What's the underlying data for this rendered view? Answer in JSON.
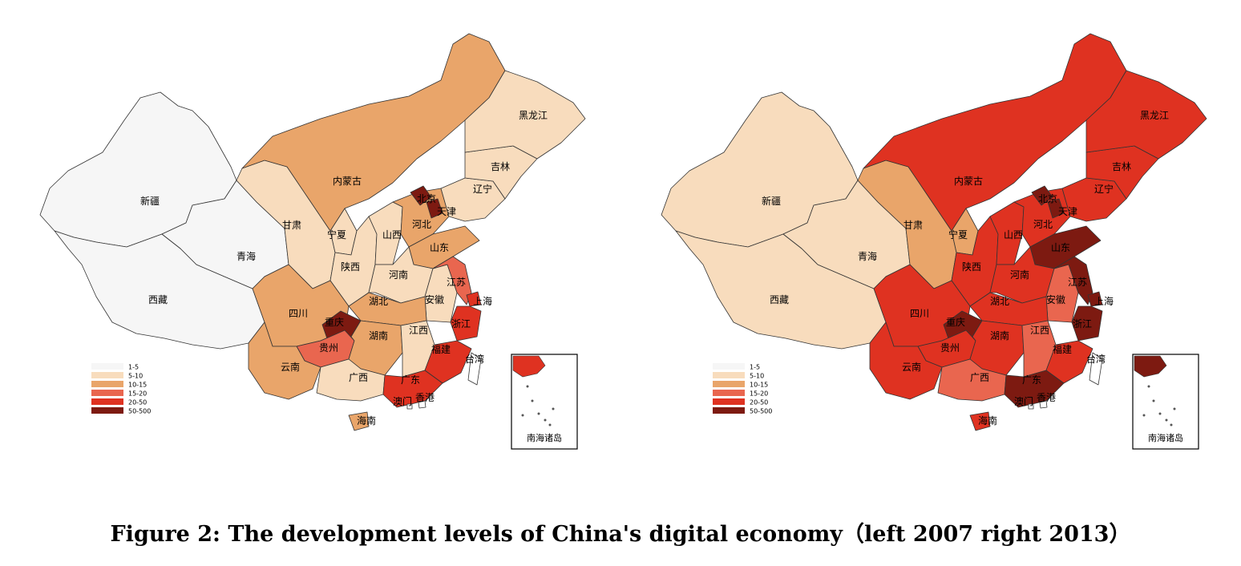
{
  "caption": "Figure 2: The development levels of China's digital economy（left 2007 right 2013）",
  "colors": {
    "c1": "#f6f6f6",
    "c2": "#f8dcbd",
    "c3": "#e9a56a",
    "c4": "#e9664f",
    "c5": "#df3221",
    "c6": "#7d1a11",
    "border": "#333333"
  },
  "legend_classes": [
    "1-5",
    "5-10",
    "10-15",
    "15-20",
    "20-50",
    "50-500"
  ],
  "maps": [
    {
      "year": "2007",
      "inset_label": "南海诸岛",
      "provinces": [
        {
          "name": "新疆",
          "class": 1
        },
        {
          "name": "西藏",
          "class": 1
        },
        {
          "name": "青海",
          "class": 1
        },
        {
          "name": "甘肃",
          "class": 2
        },
        {
          "name": "内蒙古",
          "class": 3
        },
        {
          "name": "宁夏",
          "class": 2
        },
        {
          "name": "陕西",
          "class": 2
        },
        {
          "name": "山西",
          "class": 2
        },
        {
          "name": "河北",
          "class": 3
        },
        {
          "name": "北京",
          "class": 6
        },
        {
          "name": "天津",
          "class": 6
        },
        {
          "name": "辽宁",
          "class": 2
        },
        {
          "name": "吉林",
          "class": 2
        },
        {
          "name": "黑龙江",
          "class": 2
        },
        {
          "name": "山东",
          "class": 3
        },
        {
          "name": "河南",
          "class": 2
        },
        {
          "name": "安徽",
          "class": 2
        },
        {
          "name": "江苏",
          "class": 4
        },
        {
          "name": "上海",
          "class": 5
        },
        {
          "name": "浙江",
          "class": 5
        },
        {
          "name": "湖北",
          "class": 3
        },
        {
          "name": "四川",
          "class": 3
        },
        {
          "name": "重庆",
          "class": 6
        },
        {
          "name": "贵州",
          "class": 4
        },
        {
          "name": "云南",
          "class": 3
        },
        {
          "name": "湖南",
          "class": 3
        },
        {
          "name": "江西",
          "class": 2
        },
        {
          "name": "福建",
          "class": 5
        },
        {
          "name": "广西",
          "class": 2
        },
        {
          "name": "广东",
          "class": 5
        },
        {
          "name": "海南",
          "class": 3
        },
        {
          "name": "香港",
          "class": 0
        },
        {
          "name": "澳门",
          "class": 0
        },
        {
          "name": "台湾",
          "class": 0
        }
      ]
    },
    {
      "year": "2013",
      "inset_label": "南海诸岛",
      "provinces": [
        {
          "name": "新疆",
          "class": 2
        },
        {
          "name": "西藏",
          "class": 2
        },
        {
          "name": "青海",
          "class": 2
        },
        {
          "name": "甘肃",
          "class": 3
        },
        {
          "name": "内蒙古",
          "class": 5
        },
        {
          "name": "宁夏",
          "class": 3
        },
        {
          "name": "陕西",
          "class": 5
        },
        {
          "name": "山西",
          "class": 5
        },
        {
          "name": "河北",
          "class": 5
        },
        {
          "name": "北京",
          "class": 6
        },
        {
          "name": "天津",
          "class": 6
        },
        {
          "name": "辽宁",
          "class": 5
        },
        {
          "name": "吉林",
          "class": 5
        },
        {
          "name": "黑龙江",
          "class": 5
        },
        {
          "name": "山东",
          "class": 6
        },
        {
          "name": "河南",
          "class": 5
        },
        {
          "name": "安徽",
          "class": 4
        },
        {
          "name": "江苏",
          "class": 6
        },
        {
          "name": "上海",
          "class": 6
        },
        {
          "name": "浙江",
          "class": 6
        },
        {
          "name": "湖北",
          "class": 5
        },
        {
          "name": "四川",
          "class": 5
        },
        {
          "name": "重庆",
          "class": 6
        },
        {
          "name": "贵州",
          "class": 5
        },
        {
          "name": "云南",
          "class": 5
        },
        {
          "name": "湖南",
          "class": 5
        },
        {
          "name": "江西",
          "class": 4
        },
        {
          "name": "福建",
          "class": 5
        },
        {
          "name": "广西",
          "class": 4
        },
        {
          "name": "广东",
          "class": 6
        },
        {
          "name": "海南",
          "class": 5
        },
        {
          "name": "香港",
          "class": 0
        },
        {
          "name": "澳门",
          "class": 0
        },
        {
          "name": "台湾",
          "class": 0
        }
      ]
    }
  ]
}
